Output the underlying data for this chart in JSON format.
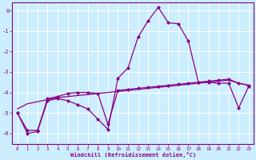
{
  "xlabel": "Windchill (Refroidissement éolien,°C)",
  "background_color": "#cceeff",
  "grid_color": "#ffffff",
  "line_color": "#880088",
  "x": [
    0,
    1,
    2,
    3,
    4,
    5,
    6,
    7,
    8,
    9,
    10,
    11,
    12,
    13,
    14,
    15,
    16,
    17,
    18,
    19,
    20,
    21,
    22,
    23
  ],
  "y_main": [
    -5.0,
    -6.0,
    -5.9,
    -4.4,
    -4.3,
    -4.4,
    -4.6,
    -4.8,
    -5.3,
    -5.8,
    -3.3,
    -2.8,
    -1.3,
    -0.5,
    0.15,
    -0.6,
    -0.65,
    -1.5,
    -3.5,
    -3.5,
    -3.55,
    -3.55,
    -4.75,
    -3.7
  ],
  "y_trend1": [
    -5.0,
    -5.85,
    -5.85,
    -4.3,
    -4.2,
    -4.05,
    -4.0,
    -4.0,
    -4.05,
    -5.55,
    -3.9,
    -3.85,
    -3.8,
    -3.75,
    -3.7,
    -3.65,
    -3.6,
    -3.55,
    -3.5,
    -3.45,
    -3.4,
    -3.35,
    -3.55,
    -3.65
  ],
  "y_trend2": [
    -4.8,
    -4.55,
    -4.45,
    -4.35,
    -4.25,
    -4.2,
    -4.15,
    -4.1,
    -4.05,
    -4.0,
    -3.95,
    -3.9,
    -3.85,
    -3.8,
    -3.75,
    -3.7,
    -3.65,
    -3.6,
    -3.55,
    -3.5,
    -3.45,
    -3.4,
    -3.55,
    -3.65
  ],
  "ylim": [
    -6.5,
    0.4
  ],
  "xlim": [
    -0.5,
    23.5
  ],
  "yticks": [
    0,
    -1,
    -2,
    -3,
    -4,
    -5,
    -6
  ],
  "xticks": [
    0,
    1,
    2,
    3,
    4,
    5,
    6,
    7,
    8,
    9,
    10,
    11,
    12,
    13,
    14,
    15,
    16,
    17,
    18,
    19,
    20,
    21,
    22,
    23
  ]
}
